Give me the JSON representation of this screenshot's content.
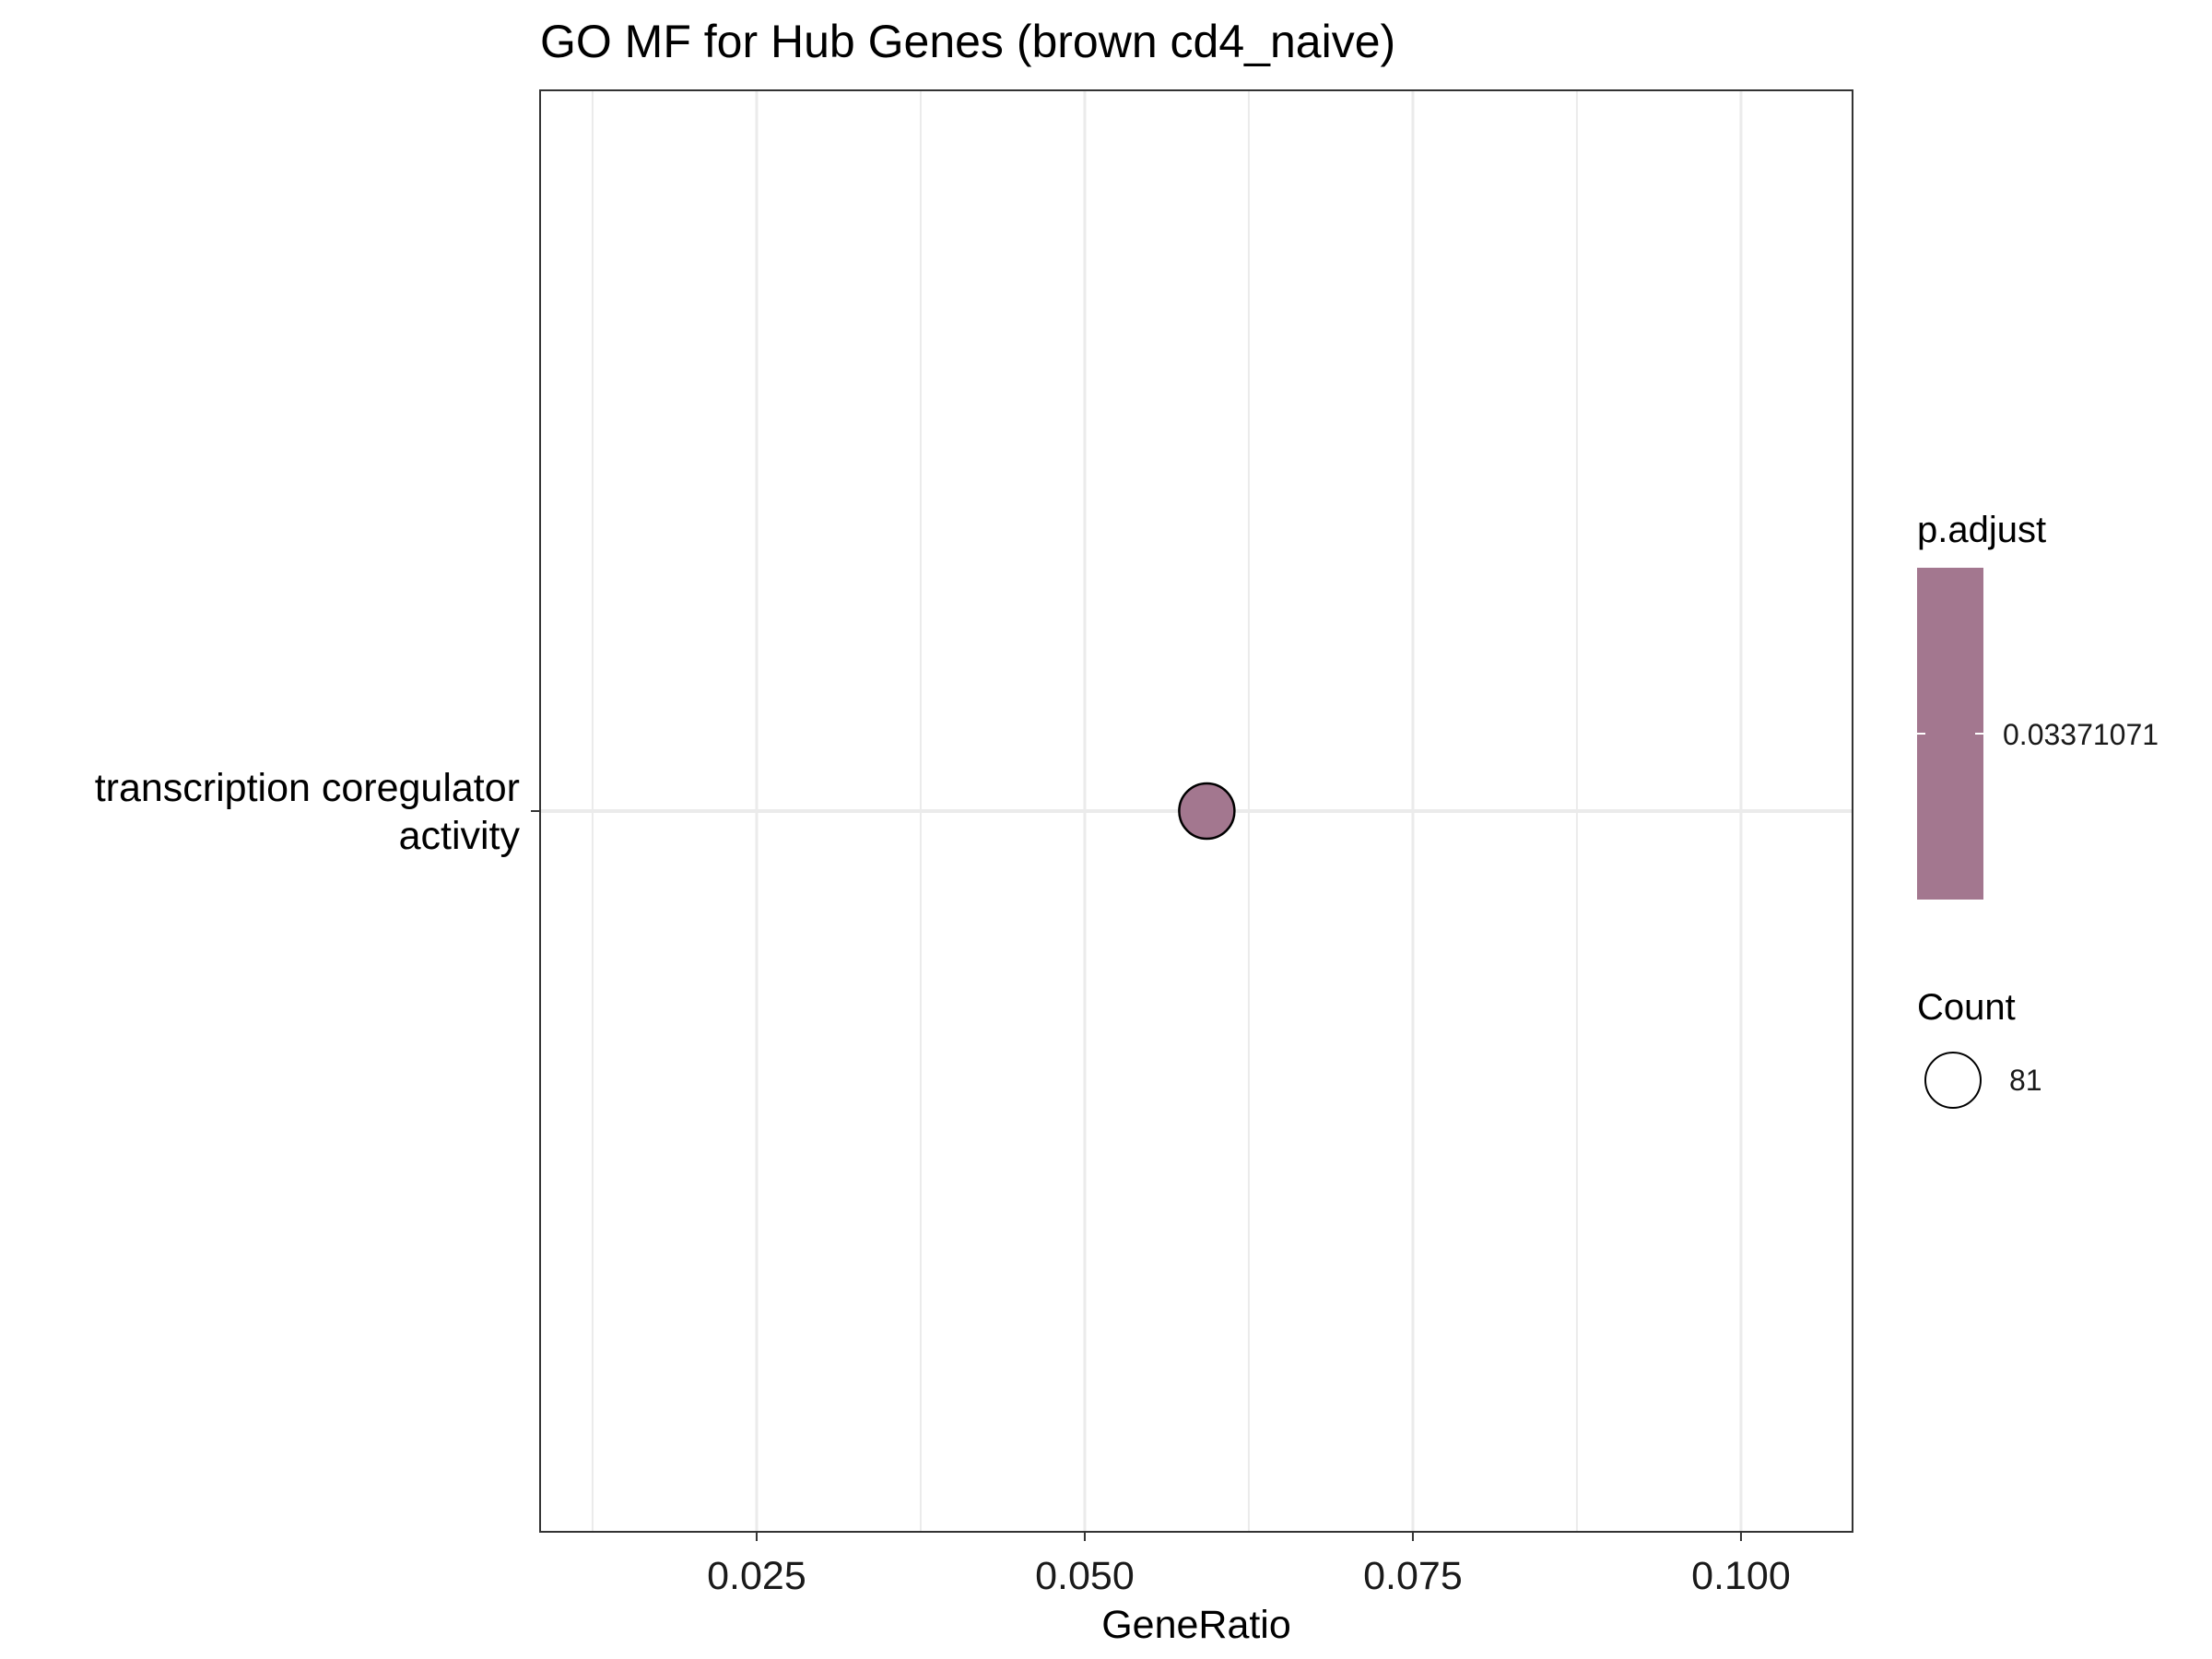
{
  "chart_data": {
    "type": "scatter",
    "title": "GO MF for Hub Genes (brown cd4_naive)",
    "xlabel": "GeneRatio",
    "ylabel": "",
    "xlim": [
      0.0085,
      0.1085
    ],
    "x_ticks": [
      0.025,
      0.05,
      0.075,
      0.1
    ],
    "x_tick_labels": [
      "0.025",
      "0.050",
      "0.075",
      "0.100"
    ],
    "categories": [
      "transcription coregulator activity"
    ],
    "category_label_lines": [
      [
        "transcription coregulator",
        "activity"
      ]
    ],
    "points": [
      {
        "category": "transcription coregulator activity",
        "x": 0.0593,
        "count": 81,
        "p_adjust": 0.03371071
      }
    ],
    "grid": true,
    "legend_position": "right",
    "legends": {
      "color": {
        "title": "p.adjust",
        "label": "0.03371071",
        "color": "#a3778f"
      },
      "size": {
        "title": "Count",
        "label": "81"
      }
    },
    "point_color": "#a3778f",
    "grid_color": "#ebebeb",
    "panel_border_color": "#333333"
  }
}
